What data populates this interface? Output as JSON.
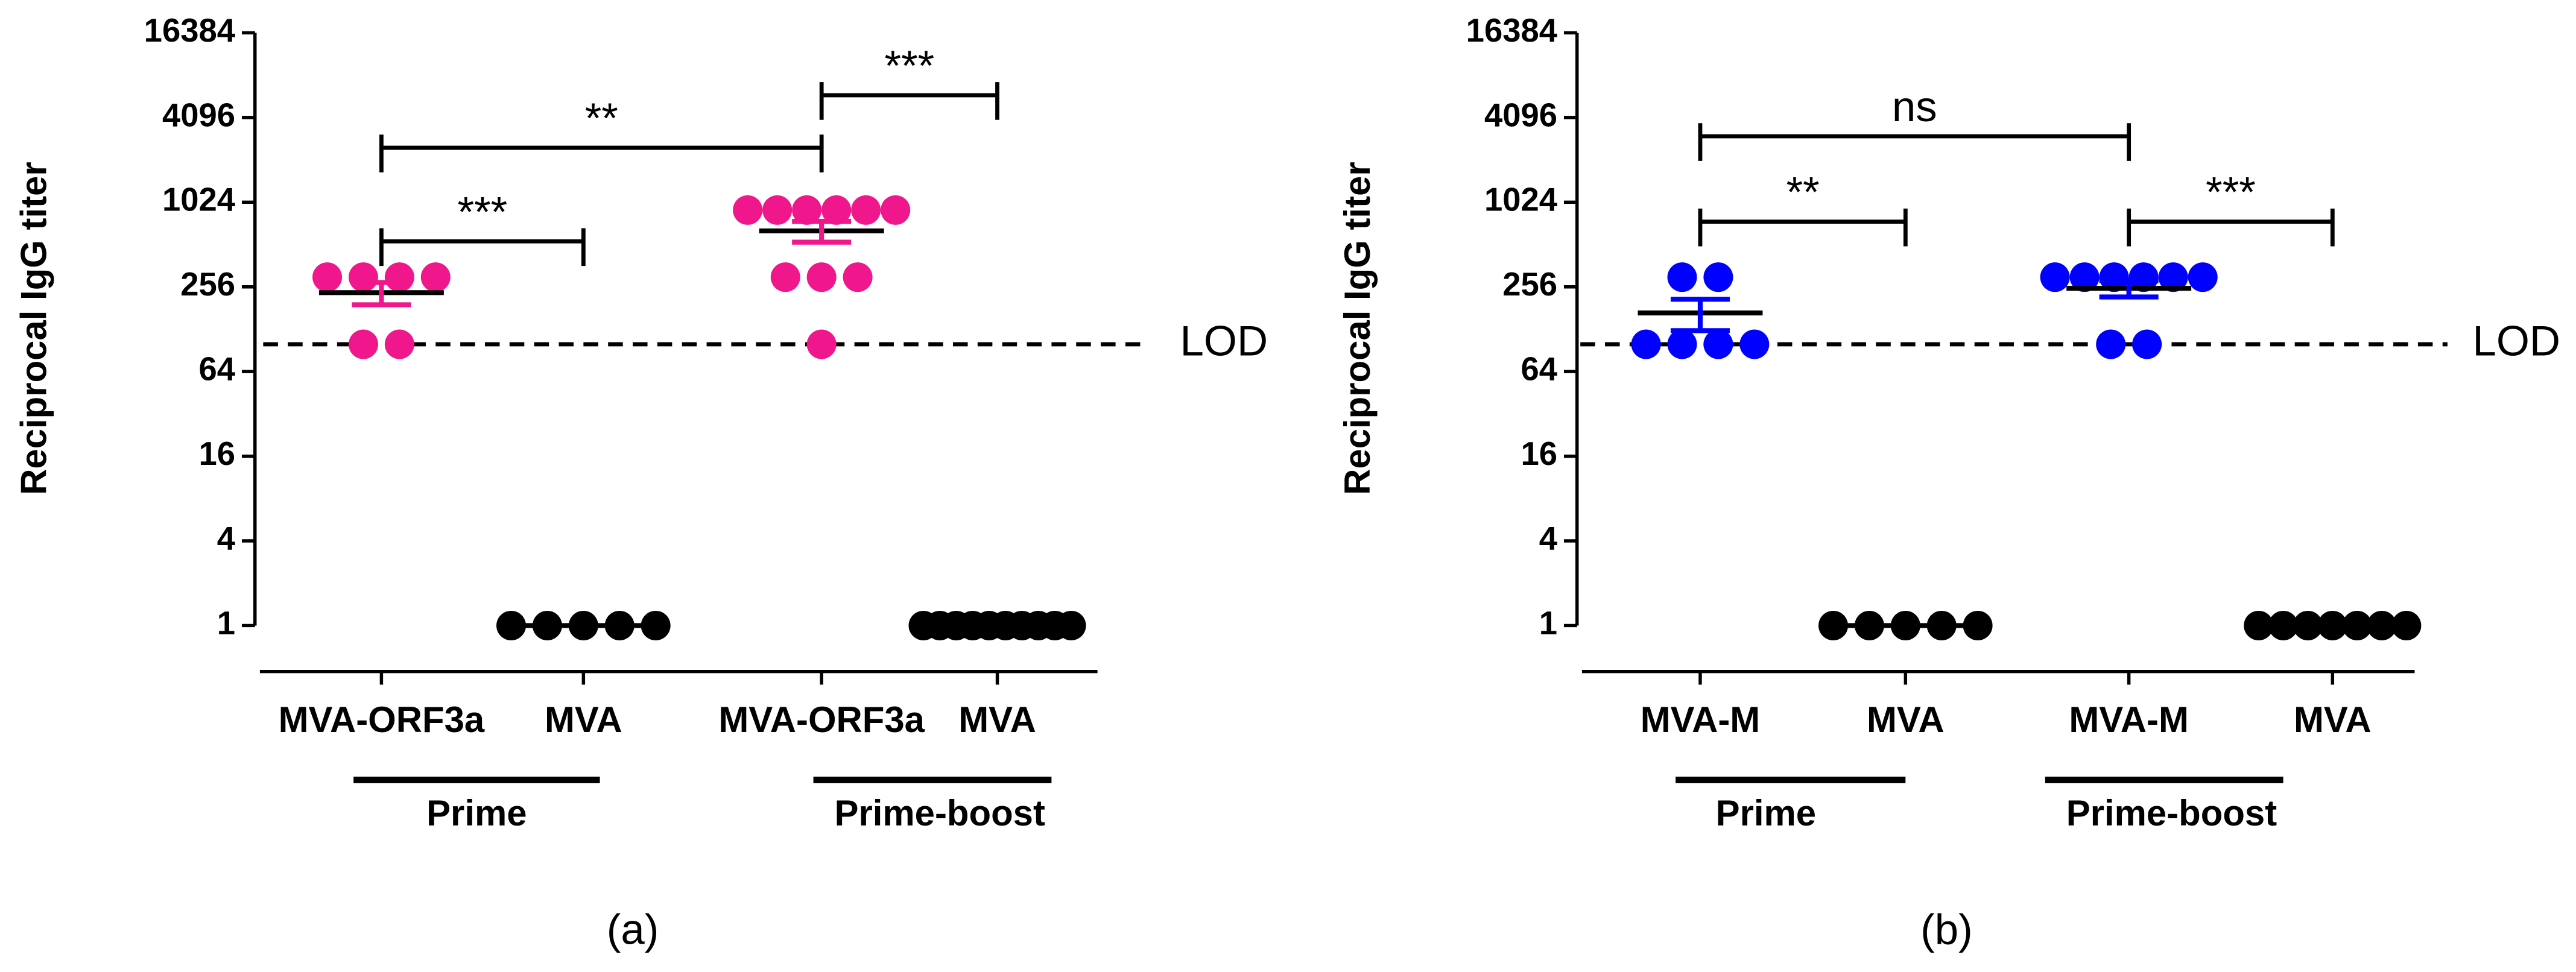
{
  "chart_data": [
    {
      "type": "scatter",
      "panel_label": "(a)",
      "y_label": "Reciprocal IgG titer",
      "categories": [
        "MVA-ORF3a",
        "MVA",
        "MVA-ORF3a",
        "MVA"
      ],
      "colors": [
        "#f0168c",
        "#000000",
        "#f0168c",
        "#000000"
      ],
      "values": [
        [
          300,
          300,
          300,
          300,
          100,
          100
        ],
        [
          1,
          1,
          1,
          1,
          1
        ],
        [
          900,
          900,
          900,
          900,
          900,
          900,
          300,
          300,
          300,
          100
        ],
        [
          1,
          1,
          1,
          1,
          1,
          1,
          1,
          1,
          1,
          1
        ]
      ],
      "means": [
        233,
        1,
        640,
        1
      ],
      "sems": [
        42,
        0,
        108,
        0
      ],
      "ylim": [
        1,
        16384
      ],
      "yscale": "log2",
      "yticks": [
        1,
        4,
        16,
        64,
        256,
        1024,
        4096,
        16384
      ],
      "lod": 100,
      "lod_label": "LOD",
      "significance": [
        "***",
        "**",
        "***"
      ],
      "group_labels": [
        "Prime",
        "Prime-boost"
      ]
    },
    {
      "type": "scatter",
      "panel_label": "(b)",
      "y_label": "Reciprocal IgG titer",
      "categories": [
        "MVA-M",
        "MVA",
        "MVA-M",
        "MVA"
      ],
      "colors": [
        "#0000ff",
        "#000000",
        "#0000ff",
        "#000000"
      ],
      "values": [
        [
          300,
          300,
          100,
          100,
          100,
          100
        ],
        [
          1,
          1,
          1,
          1,
          1
        ],
        [
          300,
          300,
          300,
          300,
          300,
          300,
          100,
          100
        ],
        [
          1,
          1,
          1,
          1,
          1,
          1,
          1
        ]
      ],
      "means": [
        167,
        1,
        250,
        1
      ],
      "sems": [
        42,
        0,
        33,
        0
      ],
      "ylim": [
        1,
        16384
      ],
      "yscale": "log2",
      "yticks": [
        1,
        4,
        16,
        64,
        256,
        1024,
        4096,
        16384
      ],
      "lod": 100,
      "lod_label": "LOD",
      "significance": [
        "ns",
        "**",
        "***"
      ],
      "group_labels": [
        "Prime",
        "Prime-boost"
      ]
    }
  ]
}
